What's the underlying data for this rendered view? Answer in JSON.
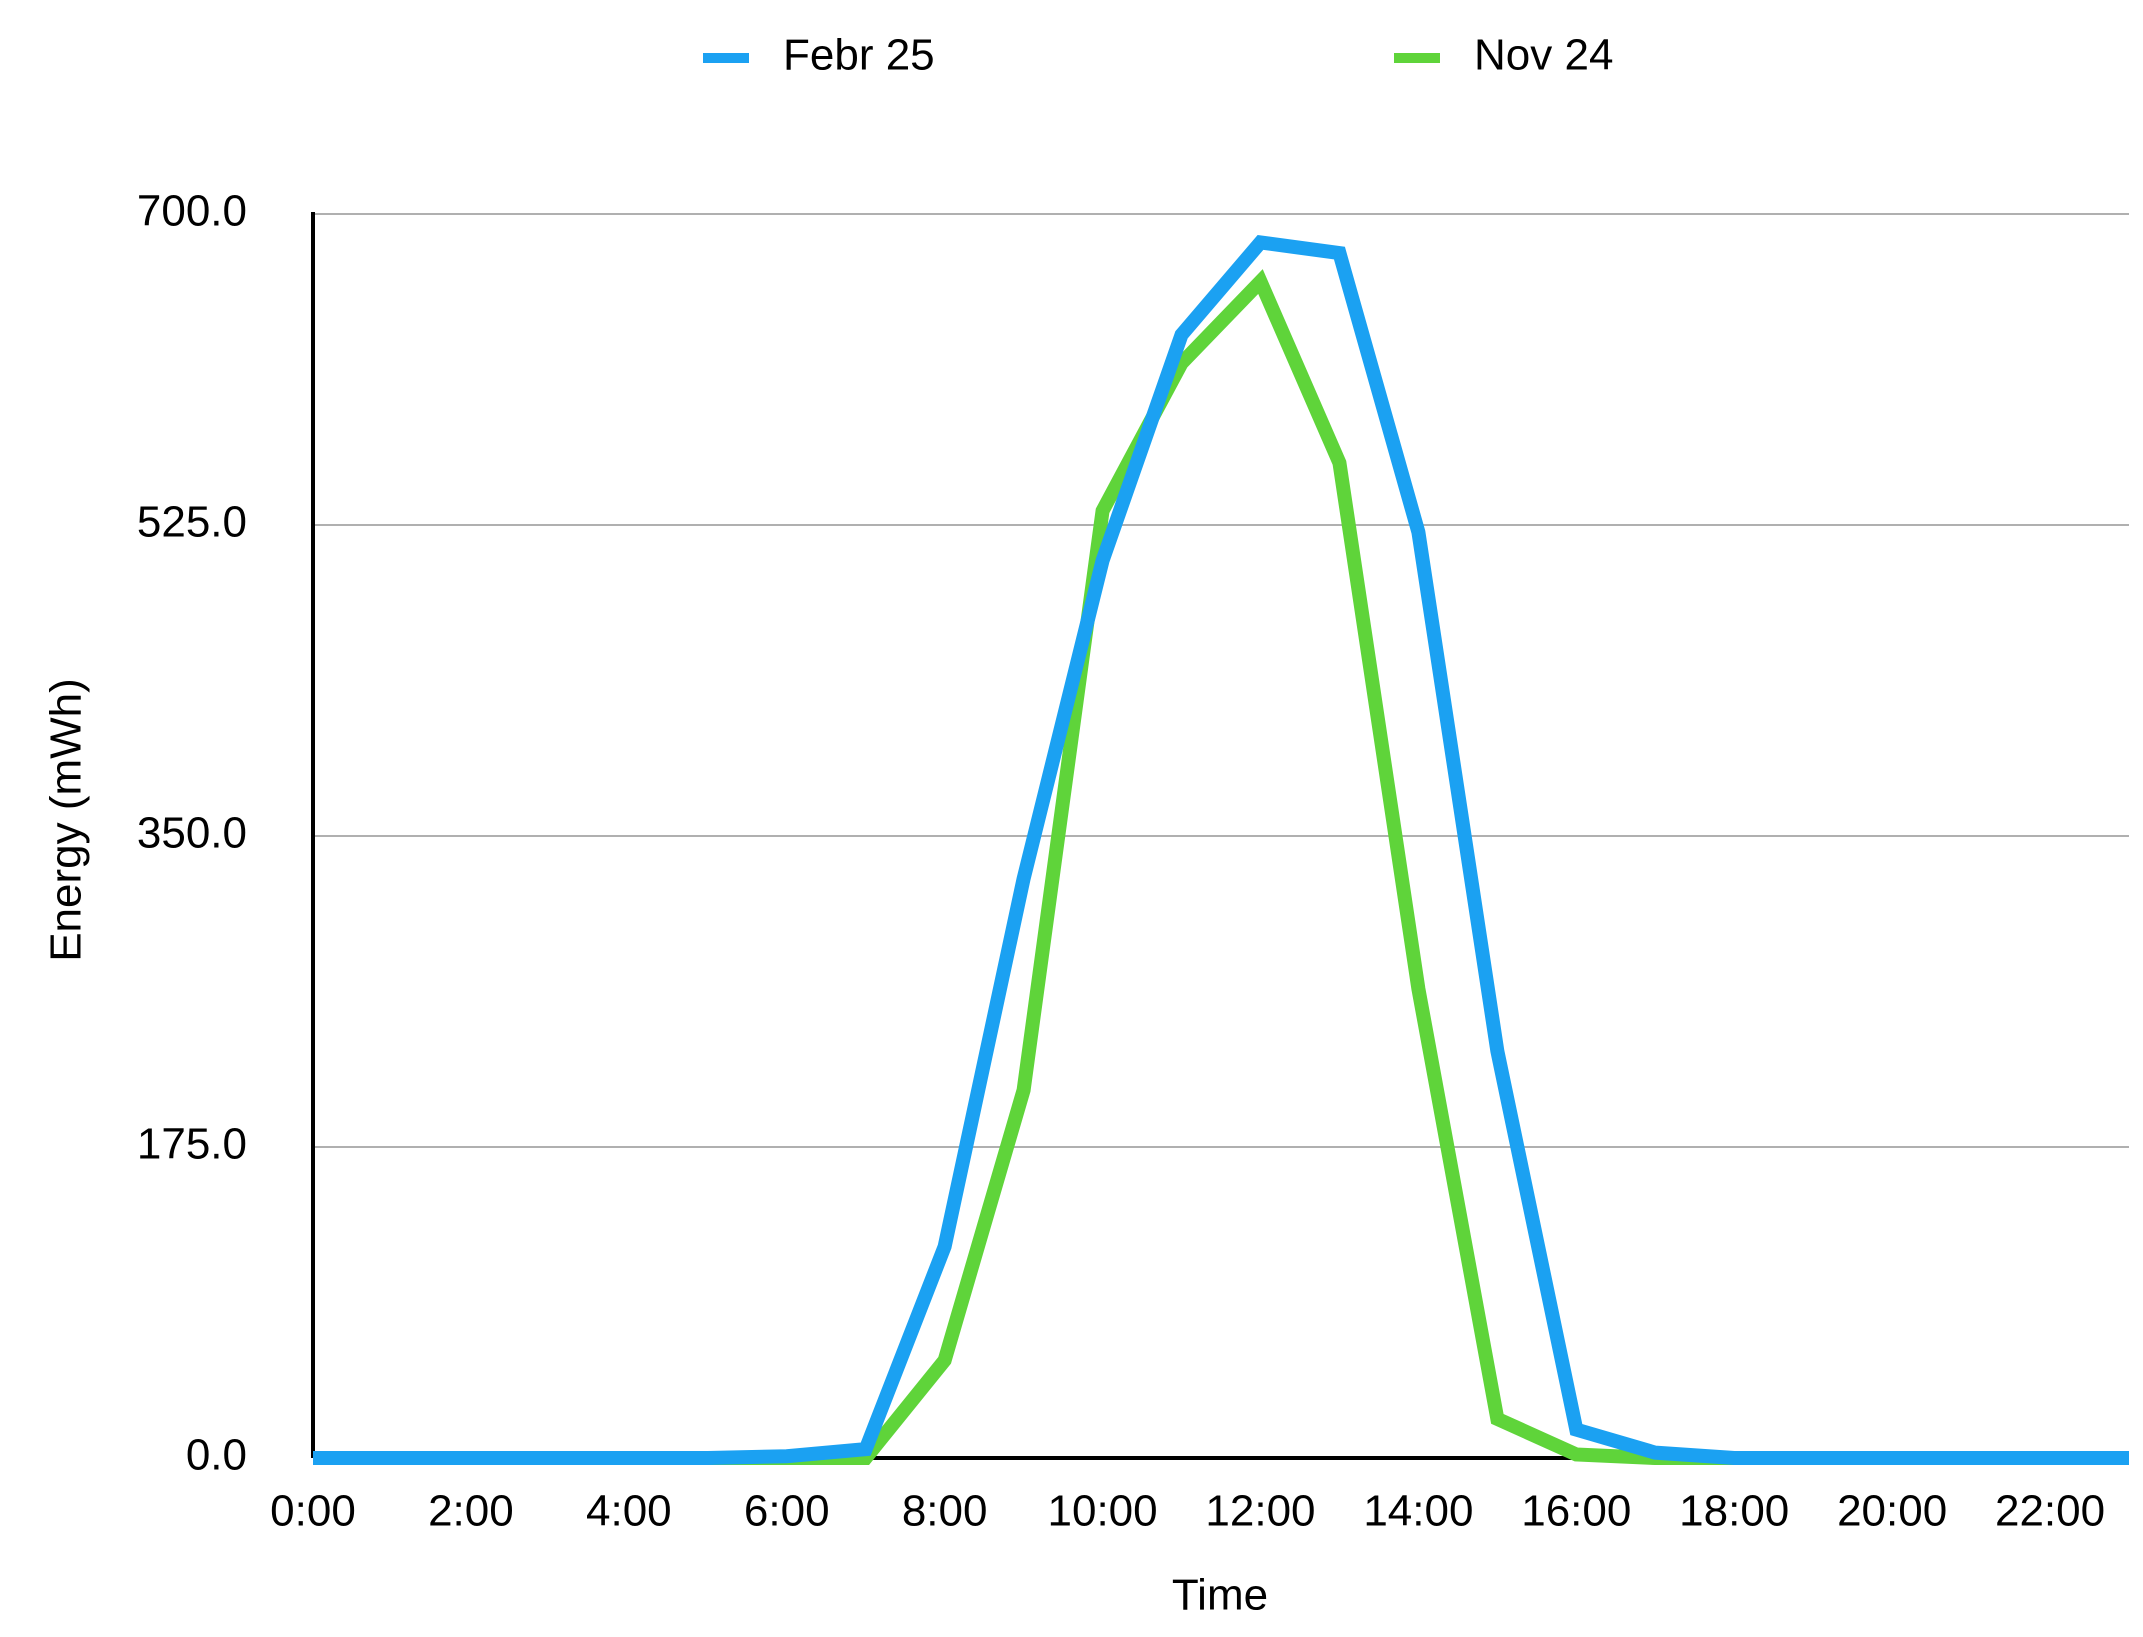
{
  "chart_data": {
    "type": "line",
    "x_label": "Time",
    "y_label": "Energy (mWh)",
    "categories": [
      "0:00",
      null,
      "2:00",
      null,
      "4:00",
      null,
      "6:00",
      null,
      "8:00",
      null,
      "10:00",
      null,
      "12:00",
      null,
      "14:00",
      null,
      "16:00",
      null,
      "18:00",
      null,
      "20:00",
      null,
      "22:00",
      null
    ],
    "series": [
      {
        "name": "Febr 25",
        "color": "#1ba1f2",
        "values": [
          0,
          0,
          0,
          0,
          0,
          0,
          1,
          5,
          119,
          326,
          505,
          632,
          684,
          678,
          521,
          229,
          16,
          3,
          0,
          0,
          0,
          0,
          0,
          0
        ]
      },
      {
        "name": "Nov 24",
        "color": "#5fd43a",
        "values": [
          0,
          0,
          0,
          0,
          0,
          0,
          0,
          0,
          55,
          207,
          533,
          616,
          662,
          560,
          264,
          22,
          2,
          0,
          0,
          0,
          0,
          0,
          0,
          0
        ]
      }
    ],
    "ylim": [
      0,
      700
    ],
    "yticks": [
      {
        "value": 0,
        "label": "0.0"
      },
      {
        "value": 175,
        "label": "175.0"
      },
      {
        "value": 350,
        "label": "350.0"
      },
      {
        "value": 525,
        "label": "525.0"
      },
      {
        "value": 700,
        "label": "700.0"
      }
    ],
    "grid": true
  }
}
